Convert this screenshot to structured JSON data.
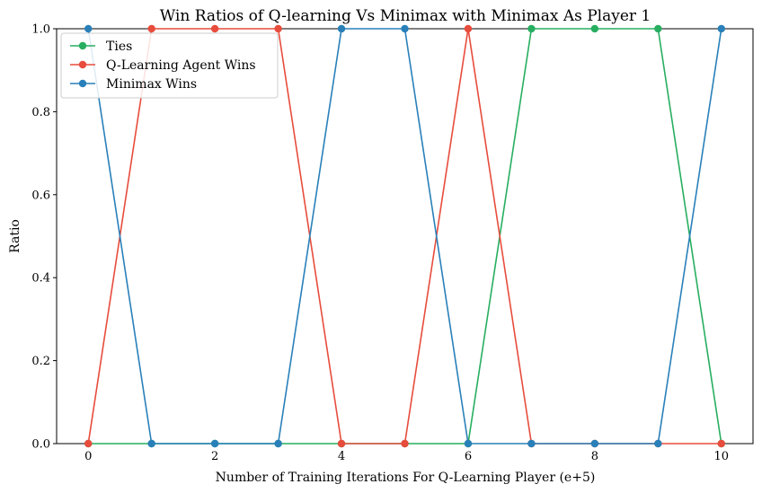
{
  "chart_data": {
    "type": "line",
    "title": "Win Ratios of Q-learning Vs Minimax with Minimax As Player 1",
    "xlabel": "Number of Training Iterations For Q-Learning Player (e+5)",
    "ylabel": "Ratio",
    "x": [
      0,
      1,
      2,
      3,
      4,
      5,
      6,
      7,
      8,
      9,
      10
    ],
    "xlim": [
      -0.5,
      10.5
    ],
    "ylim": [
      0,
      1
    ],
    "xticks": [
      0,
      2,
      4,
      6,
      8,
      10
    ],
    "xtick_labels": [
      "0",
      "2",
      "4",
      "6",
      "8",
      "10"
    ],
    "yticks": [
      0,
      0.2,
      0.4,
      0.6,
      0.8,
      1
    ],
    "ytick_labels": [
      "0.0",
      "0.2",
      "0.4",
      "0.6",
      "0.8",
      "1.0"
    ],
    "grid": false,
    "legend_position": "top-left",
    "series": [
      {
        "name": "Ties",
        "color": "#27ae60",
        "values": [
          0,
          0,
          0,
          0,
          0,
          0,
          0,
          1,
          1,
          1,
          0
        ]
      },
      {
        "name": "Q-Learning Agent Wins",
        "color": "#e74c3c",
        "values": [
          0,
          1,
          1,
          1,
          0,
          0,
          1,
          0,
          0,
          0,
          0
        ]
      },
      {
        "name": "Minimax Wins",
        "color": "#2980b9",
        "values": [
          1,
          0,
          0,
          0,
          1,
          1,
          0,
          0,
          0,
          0,
          1
        ]
      }
    ]
  }
}
